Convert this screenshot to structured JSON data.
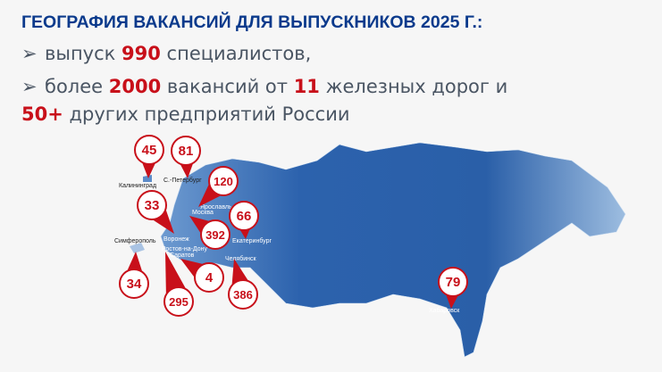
{
  "title": "ГЕОГРАФИЯ ВАКАНСИЙ ДЛЯ ВЫПУСКНИКОВ 2025 Г.:",
  "bullets": [
    {
      "pre": "выпуск ",
      "num": "990",
      "post": " специалистов,"
    },
    {
      "pre": "более ",
      "num": "2000",
      "mid": " вакансий от ",
      "num2": "11",
      "post": " железных дорог и"
    }
  ],
  "line3": {
    "num": "50+",
    "post": " других предприятий России"
  },
  "bullet_icon": "arrowhead-bullet-icon",
  "colors": {
    "title": "#0b3a8c",
    "accent": "#c8101a",
    "map": "#2a5fa8"
  },
  "pins": [
    {
      "value": "45",
      "city": "Калининград"
    },
    {
      "value": "81",
      "city": "С.-Петербург"
    },
    {
      "value": "120",
      "city": "Ярославль"
    },
    {
      "value": "33",
      "city": "Воронеж"
    },
    {
      "value": "392",
      "city": "Москва"
    },
    {
      "value": "66",
      "city": "Екатеринбург"
    },
    {
      "value": "34",
      "city": "Симферополь"
    },
    {
      "value": "295",
      "city": "Ростов-на-Дону"
    },
    {
      "value": "4",
      "city": "Саратов"
    },
    {
      "value": "386",
      "city": "Челябинск"
    },
    {
      "value": "79",
      "city": "Хабаровск"
    }
  ]
}
